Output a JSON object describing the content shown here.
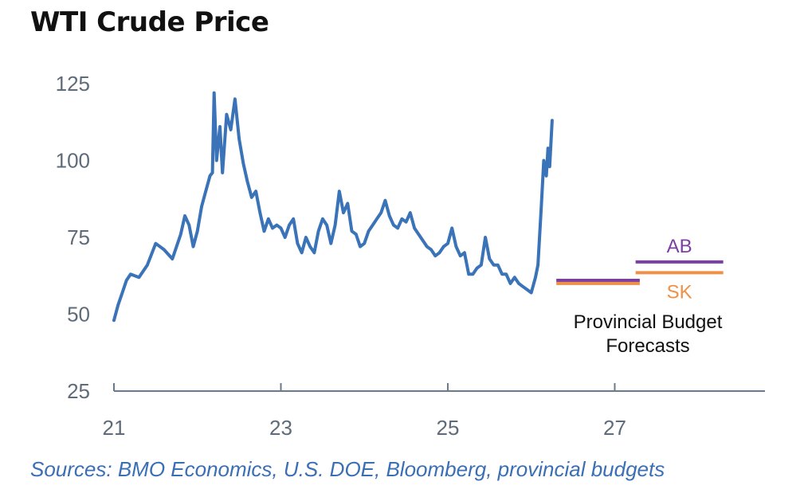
{
  "title": "WTI Crude Price",
  "source": "Sources: BMO Economics, U.S. DOE, Bloomberg, provincial budgets",
  "colors": {
    "line": "#3a73b8",
    "axis": "#6b7a8a",
    "tick_text": "#5f6b78",
    "source_text": "#3a6fb5",
    "ab": "#7b3fa3",
    "sk": "#ee9148",
    "title": "#111111"
  },
  "chart_data": {
    "type": "line",
    "title": "WTI Crude Price",
    "xlabel": "",
    "ylabel": "",
    "xlim": [
      2021,
      2028.8
    ],
    "ylim": [
      25,
      125
    ],
    "x_ticks": [
      2021,
      2023,
      2025,
      2027
    ],
    "x_tick_labels": [
      "21",
      "23",
      "25",
      "27"
    ],
    "y_ticks": [
      25,
      50,
      75,
      100,
      125
    ],
    "y_tick_labels": [
      "25",
      "50",
      "75",
      "100",
      "125"
    ],
    "grid": false,
    "series": [
      {
        "name": "WTI",
        "x": [
          2021.0,
          2021.05,
          2021.1,
          2021.15,
          2021.2,
          2021.3,
          2021.4,
          2021.5,
          2021.6,
          2021.7,
          2021.8,
          2021.85,
          2021.9,
          2021.95,
          2022.0,
          2022.05,
          2022.1,
          2022.15,
          2022.18,
          2022.2,
          2022.23,
          2022.27,
          2022.3,
          2022.35,
          2022.4,
          2022.45,
          2022.5,
          2022.55,
          2022.6,
          2022.65,
          2022.7,
          2022.75,
          2022.8,
          2022.85,
          2022.9,
          2022.95,
          2023.0,
          2023.05,
          2023.1,
          2023.15,
          2023.2,
          2023.25,
          2023.3,
          2023.35,
          2023.4,
          2023.45,
          2023.5,
          2023.55,
          2023.6,
          2023.65,
          2023.7,
          2023.75,
          2023.8,
          2023.85,
          2023.9,
          2023.95,
          2024.0,
          2024.05,
          2024.1,
          2024.15,
          2024.2,
          2024.25,
          2024.3,
          2024.35,
          2024.4,
          2024.45,
          2024.5,
          2024.55,
          2024.6,
          2024.65,
          2024.7,
          2024.75,
          2024.8,
          2024.85,
          2024.9,
          2024.95,
          2025.0,
          2025.05,
          2025.1,
          2025.15,
          2025.2,
          2025.25,
          2025.3,
          2025.35,
          2025.4,
          2025.45,
          2025.5,
          2025.55,
          2025.6,
          2025.65,
          2025.7,
          2025.75,
          2025.8,
          2025.85,
          2025.9,
          2025.95,
          2026.0,
          2026.05,
          2026.08,
          2026.12,
          2026.15,
          2026.18,
          2026.2,
          2026.22,
          2026.25
        ],
        "values": [
          48,
          53,
          57,
          61,
          63,
          62,
          66,
          73,
          71,
          68,
          76,
          82,
          79,
          72,
          77,
          85,
          90,
          95,
          96,
          122,
          100,
          111,
          96,
          115,
          110,
          120,
          107,
          99,
          93,
          88,
          90,
          83,
          77,
          81,
          78,
          79,
          78,
          75,
          79,
          81,
          73,
          70,
          75,
          72,
          70,
          77,
          81,
          79,
          73,
          79,
          90,
          83,
          86,
          77,
          76,
          72,
          73,
          77,
          79,
          81,
          83,
          87,
          82,
          79,
          78,
          81,
          80,
          83,
          78,
          76,
          74,
          72,
          71,
          69,
          70,
          72,
          73,
          78,
          72,
          69,
          70,
          63,
          63,
          65,
          66,
          75,
          68,
          66,
          66,
          63,
          63,
          60,
          62,
          60,
          59,
          58,
          57,
          62,
          66,
          85,
          100,
          95,
          104,
          98,
          113
        ]
      }
    ],
    "forecasts": [
      {
        "label": "AB",
        "value": 67.0,
        "x_start": 2027.25,
        "x_end": 2028.3,
        "label_position": "above"
      },
      {
        "label": "SK",
        "value": 63.5,
        "x_start": 2027.25,
        "x_end": 2028.3,
        "label_position": "below"
      },
      {
        "label": "",
        "value": 61.0,
        "x_start": 2026.3,
        "x_end": 2027.3,
        "color_key": "ab"
      },
      {
        "label": "",
        "value": 60.0,
        "x_start": 2026.3,
        "x_end": 2027.3,
        "color_key": "sk"
      }
    ],
    "annotation": [
      "Provincial Budget",
      "Forecasts"
    ]
  }
}
